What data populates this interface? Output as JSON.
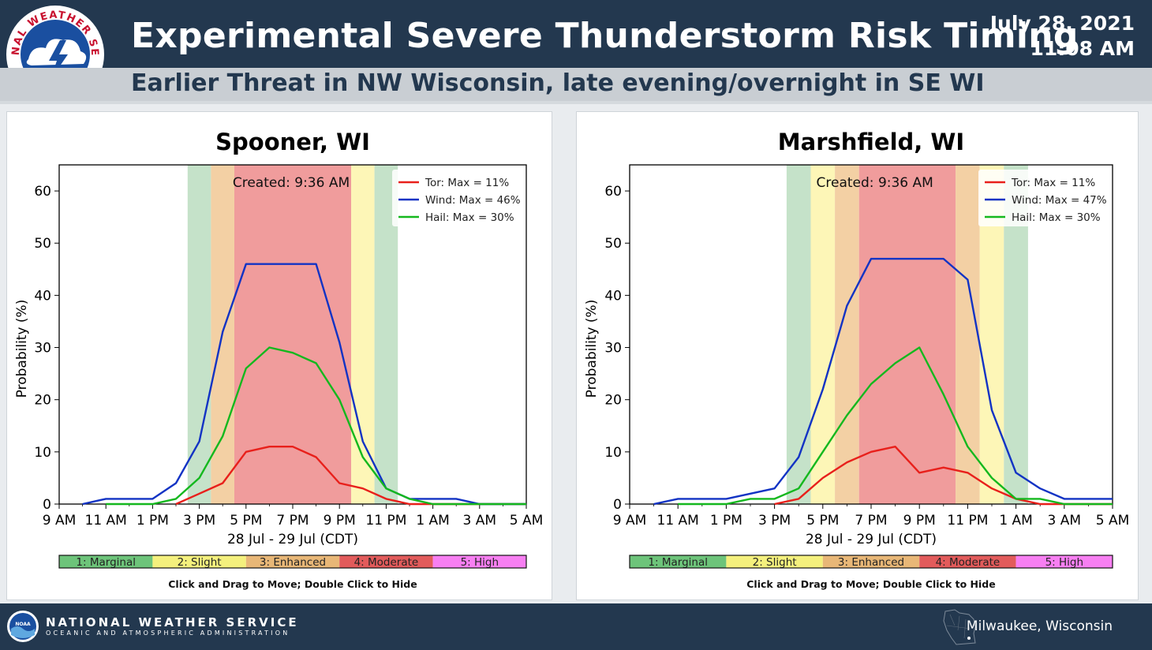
{
  "header": {
    "title": "Experimental Severe Thunderstorm Risk Timing",
    "subtitle": "Earlier Threat in NW Wisconsin, late evening/overnight in SE WI",
    "date": "July 28, 2021",
    "time": "11:08 AM",
    "logo_text": "NATIONAL WEATHER SERVICE"
  },
  "footer": {
    "agency": "NATIONAL WEATHER SERVICE",
    "agency_sub": "OCEANIC AND ATMOSPHERIC ADMINISTRATION",
    "office": "Milwaukee, Wisconsin"
  },
  "risk_colors": {
    "marginal": "#c5e2c9",
    "slight": "#fdf6b7",
    "enhanced": "#f3d0a4",
    "moderate": "#f09c9c",
    "high": "#f77ff2"
  },
  "legend_bar_colors": {
    "marginal": "#6dc47a",
    "slight": "#f4f07d",
    "enhanced": "#e8b777",
    "moderate": "#e25b5b",
    "high": "#f77ff2"
  },
  "series_colors": {
    "tor": "#e8201b",
    "wind": "#1233c4",
    "hail": "#14b81e"
  },
  "chart_data": [
    {
      "type": "line",
      "title": "Spooner, WI",
      "xlabel": "28 Jul - 29 Jul (CDT)",
      "ylabel": "Probability (%)",
      "annotation": "Created: 9:36 AM",
      "xlim": [
        0,
        20
      ],
      "ylim": [
        0,
        65
      ],
      "yticks": [
        0,
        10,
        20,
        30,
        40,
        50,
        60
      ],
      "x_tick_positions": [
        0,
        2,
        4,
        6,
        8,
        10,
        12,
        14,
        16,
        18,
        20
      ],
      "x_tick_labels": [
        "9 AM",
        "11 AM",
        "1 PM",
        "3 PM",
        "5 PM",
        "7 PM",
        "9 PM",
        "11 PM",
        "1 AM",
        "3 AM",
        "5 AM"
      ],
      "x": [
        0,
        1,
        2,
        3,
        4,
        5,
        6,
        7,
        8,
        9,
        10,
        11,
        12,
        13,
        14,
        15,
        16,
        17,
        18,
        19,
        20
      ],
      "series": [
        {
          "name": "Tor: Max = 11%",
          "key": "tor",
          "values": [
            null,
            null,
            null,
            null,
            null,
            0,
            2,
            4,
            10,
            11,
            11,
            9,
            4,
            3,
            1,
            0,
            0,
            0,
            0,
            0,
            0
          ]
        },
        {
          "name": "Wind: Max = 46%",
          "key": "wind",
          "values": [
            null,
            0,
            1,
            1,
            1,
            4,
            12,
            33,
            46,
            46,
            46,
            46,
            31,
            12,
            3,
            1,
            1,
            1,
            0,
            0,
            0
          ]
        },
        {
          "name": "Hail: Max = 30%",
          "key": "hail",
          "values": [
            null,
            null,
            0,
            0,
            0,
            1,
            5,
            13,
            26,
            30,
            29,
            27,
            20,
            9,
            3,
            1,
            0,
            0,
            0,
            0,
            0
          ]
        }
      ],
      "risk_bands": [
        {
          "start": 5.5,
          "end": 6.5,
          "level": "marginal"
        },
        {
          "start": 6.5,
          "end": 7.5,
          "level": "enhanced"
        },
        {
          "start": 7.5,
          "end": 12.5,
          "level": "moderate"
        },
        {
          "start": 12.5,
          "end": 13.5,
          "level": "slight"
        },
        {
          "start": 13.5,
          "end": 14.5,
          "level": "marginal"
        }
      ],
      "risk_legend": [
        "1: Marginal",
        "2: Slight",
        "3: Enhanced",
        "4: Moderate",
        "5: High"
      ],
      "hint": "Click and Drag to Move; Double Click to Hide",
      "legend": "top-right",
      "grid": false
    },
    {
      "type": "line",
      "title": "Marshfield, WI",
      "xlabel": "28 Jul - 29 Jul (CDT)",
      "ylabel": "Probability (%)",
      "annotation": "Created: 9:36 AM",
      "xlim": [
        0,
        20
      ],
      "ylim": [
        0,
        65
      ],
      "yticks": [
        0,
        10,
        20,
        30,
        40,
        50,
        60
      ],
      "x_tick_positions": [
        0,
        2,
        4,
        6,
        8,
        10,
        12,
        14,
        16,
        18,
        20
      ],
      "x_tick_labels": [
        "9 AM",
        "11 AM",
        "1 PM",
        "3 PM",
        "5 PM",
        "7 PM",
        "9 PM",
        "11 PM",
        "1 AM",
        "3 AM",
        "5 AM"
      ],
      "x": [
        0,
        1,
        2,
        3,
        4,
        5,
        6,
        7,
        8,
        9,
        10,
        11,
        12,
        13,
        14,
        15,
        16,
        17,
        18,
        19,
        20
      ],
      "series": [
        {
          "name": "Tor: Max = 11%",
          "key": "tor",
          "values": [
            null,
            null,
            null,
            null,
            null,
            null,
            0,
            1,
            5,
            8,
            10,
            11,
            6,
            7,
            6,
            3,
            1,
            0,
            0,
            0,
            0
          ]
        },
        {
          "name": "Wind: Max = 47%",
          "key": "wind",
          "values": [
            null,
            0,
            1,
            1,
            1,
            2,
            3,
            9,
            22,
            38,
            47,
            47,
            47,
            47,
            43,
            18,
            6,
            3,
            1,
            1,
            1
          ]
        },
        {
          "name": "Hail: Max = 30%",
          "key": "hail",
          "values": [
            null,
            null,
            0,
            0,
            0,
            1,
            1,
            3,
            10,
            17,
            23,
            27,
            30,
            21,
            11,
            5,
            1,
            1,
            0,
            0,
            0
          ]
        }
      ],
      "risk_bands": [
        {
          "start": 6.5,
          "end": 7.5,
          "level": "marginal"
        },
        {
          "start": 7.5,
          "end": 8.5,
          "level": "slight"
        },
        {
          "start": 8.5,
          "end": 9.5,
          "level": "enhanced"
        },
        {
          "start": 9.5,
          "end": 13.5,
          "level": "moderate"
        },
        {
          "start": 13.5,
          "end": 14.5,
          "level": "enhanced"
        },
        {
          "start": 14.5,
          "end": 15.5,
          "level": "slight"
        },
        {
          "start": 15.5,
          "end": 16.5,
          "level": "marginal"
        }
      ],
      "risk_legend": [
        "1: Marginal",
        "2: Slight",
        "3: Enhanced",
        "4: Moderate",
        "5: High"
      ],
      "hint": "Click and Drag to Move; Double Click to Hide",
      "legend": "top-right",
      "grid": false
    }
  ]
}
